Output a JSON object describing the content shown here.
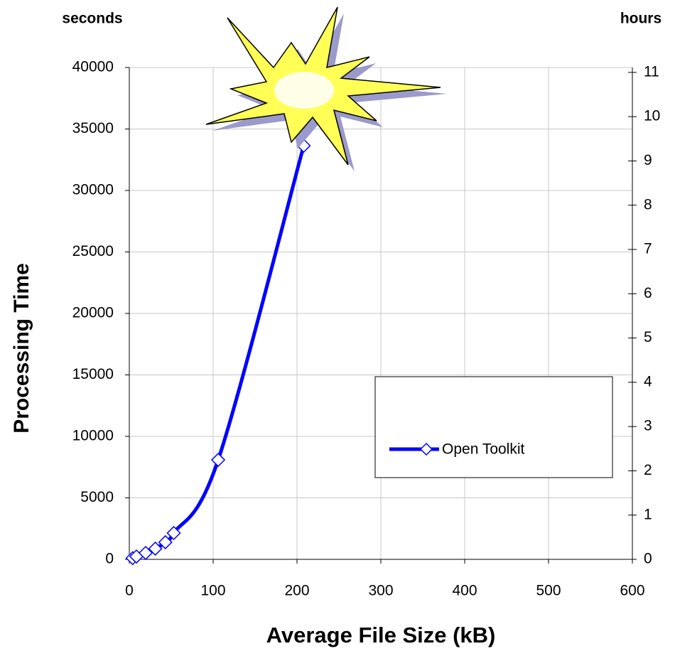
{
  "chart_data": {
    "type": "line",
    "x_label": "Average File Size (kB)",
    "y_label": "Processing Time",
    "y_unit": "seconds",
    "y2_unit": "hours",
    "x": [
      4,
      8.5,
      19.5,
      31,
      43,
      53,
      106,
      208
    ],
    "series": [
      {
        "name": "Open Toolkit",
        "color": "#0000ff",
        "values": [
          100,
          230,
          520,
          870,
          1390,
          2140,
          8090,
          33640
        ]
      }
    ],
    "xlim": [
      0,
      600
    ],
    "xticks": [
      0,
      100,
      200,
      300,
      400,
      500,
      600
    ],
    "ylim": [
      0,
      40000
    ],
    "yticks": [
      0,
      5000,
      10000,
      15000,
      20000,
      25000,
      30000,
      35000,
      40000
    ],
    "y2lim": [
      0,
      11.11
    ],
    "y2ticks": [
      0,
      1,
      2,
      3,
      4,
      5,
      6,
      7,
      8,
      9,
      10,
      11
    ],
    "grid": true
  }
}
